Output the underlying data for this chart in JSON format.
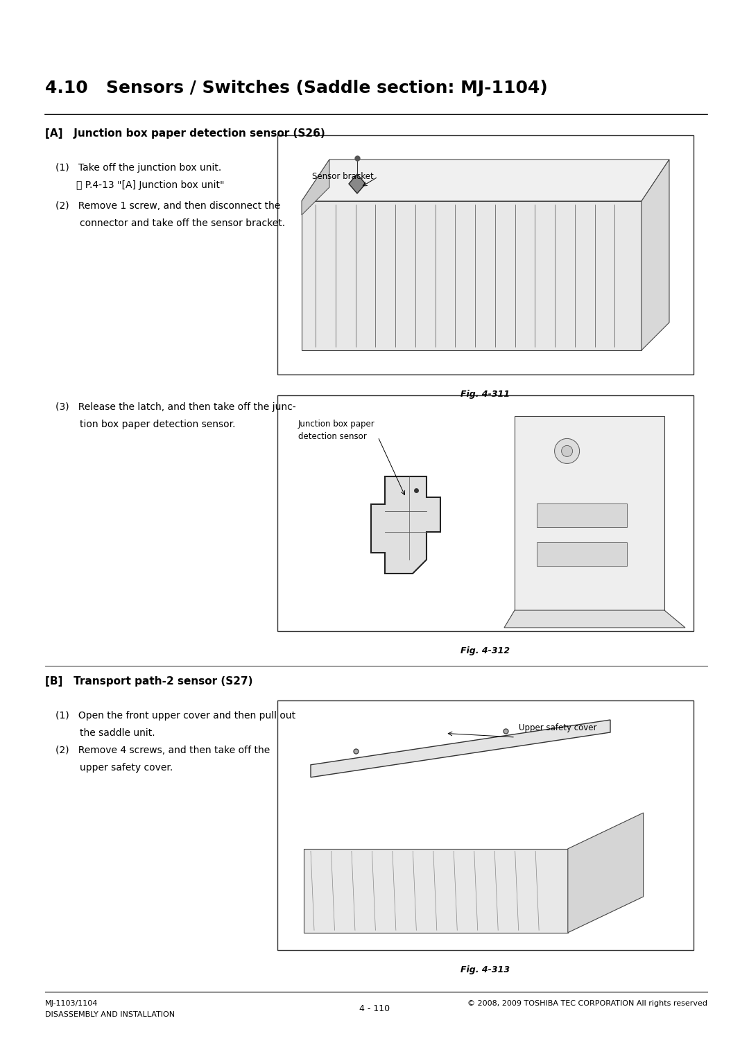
{
  "bg_color": "#ffffff",
  "page_width": 10.8,
  "page_height": 15.27,
  "title": "4.10   Sensors / Switches (Saddle section: MJ-1104)",
  "title_fontsize": 18,
  "title_fontweight": "bold",
  "sectionA_label": "[A]   Junction box paper detection sensor (S26)",
  "sectionA_fontsize": 11,
  "sectionA_fontweight": "bold",
  "step1_text": "(1)   Take off the junction box unit.",
  "step1b_text": "⌹ P.4-13 \"[A] Junction box unit\"",
  "step2_text": "(2)   Remove 1 screw, and then disconnect the",
  "step2b_text": "        connector and take off the sensor bracket.",
  "step3_text": "(3)   Release the latch, and then take off the junc-",
  "step3b_text": "        tion box paper detection sensor.",
  "sectionB_label": "[B]   Transport path-2 sensor (S27)",
  "sectionB_fontsize": 11,
  "sectionB_fontweight": "bold",
  "step4_text": "(1)   Open the front upper cover and then pull out",
  "step4b_text": "        the saddle unit.",
  "step5_text": "(2)   Remove 4 screws, and then take off the",
  "step5b_text": "        upper safety cover.",
  "fig311_caption": "Fig. 4-311",
  "fig311_sensor_label": "Sensor bracket",
  "fig312_caption": "Fig. 4-312",
  "fig312_label_line1": "Junction box paper",
  "fig312_label_line2": "detection sensor",
  "fig313_caption": "Fig. 4-313",
  "fig313_safety_label": "Upper safety cover",
  "footer_left_line1": "MJ-1103/1104",
  "footer_left_line2": "DISASSEMBLY AND INSTALLATION",
  "footer_center": "4 - 110",
  "footer_right": "© 2008, 2009 TOSHIBA TEC CORPORATION All rights reserved",
  "text_fontsize": 10,
  "fig_caption_fontsize": 9,
  "body_color": "#000000",
  "box_edgecolor": "#555555",
  "box_facecolor": "#ffffff"
}
